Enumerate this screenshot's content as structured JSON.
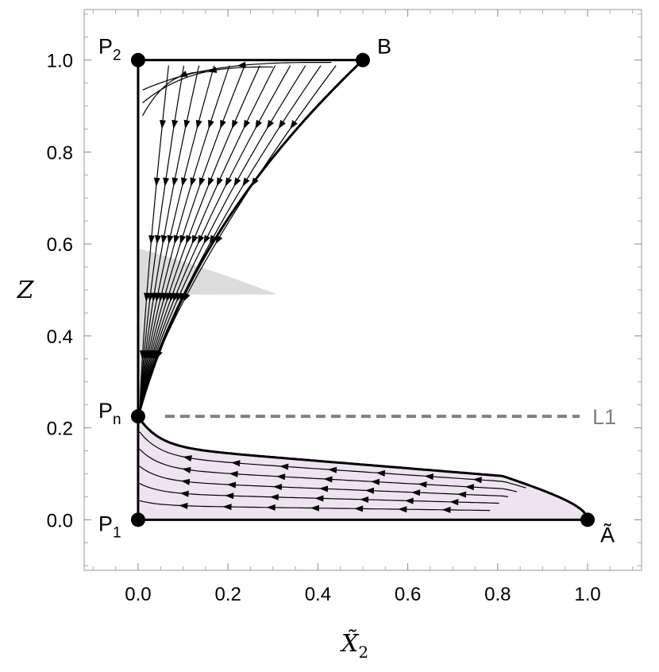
{
  "chart_data": {
    "type": "line",
    "xlabel": "X̃",
    "xlabel_sub": "2",
    "ylabel": "Z",
    "xlim": [
      -0.12,
      1.12
    ],
    "ylim": [
      -0.11,
      1.11
    ],
    "x_ticks": [
      "0.0",
      "0.2",
      "0.4",
      "0.6",
      "0.8",
      "1.0"
    ],
    "y_ticks": [
      "0.0",
      "0.2",
      "0.4",
      "0.6",
      "0.8",
      "1.0"
    ],
    "grid": false,
    "colors": {
      "gray_region": "#dcdcdc",
      "pink_region": "#efe3f2",
      "boundary": "#000000",
      "l1_line": "#808080",
      "frame": "#999999"
    },
    "points": [
      {
        "id": "P1",
        "base": "P",
        "sub": "1",
        "x": 0.0,
        "y": 0.0
      },
      {
        "id": "P2",
        "base": "P",
        "sub": "2",
        "x": 0.0,
        "y": 1.0
      },
      {
        "id": "Pn",
        "base": "P",
        "sub": "n",
        "x": 0.0,
        "y": 0.225
      },
      {
        "id": "B",
        "base": "B",
        "sub": "",
        "x": 0.5,
        "y": 1.0
      },
      {
        "id": "A",
        "base": "Ã",
        "sub": "",
        "x": 1.0,
        "y": 0.0
      }
    ],
    "line_L1": {
      "label": "L1",
      "y": 0.225,
      "x_start": 0.06,
      "x_end": 1.0
    }
  }
}
